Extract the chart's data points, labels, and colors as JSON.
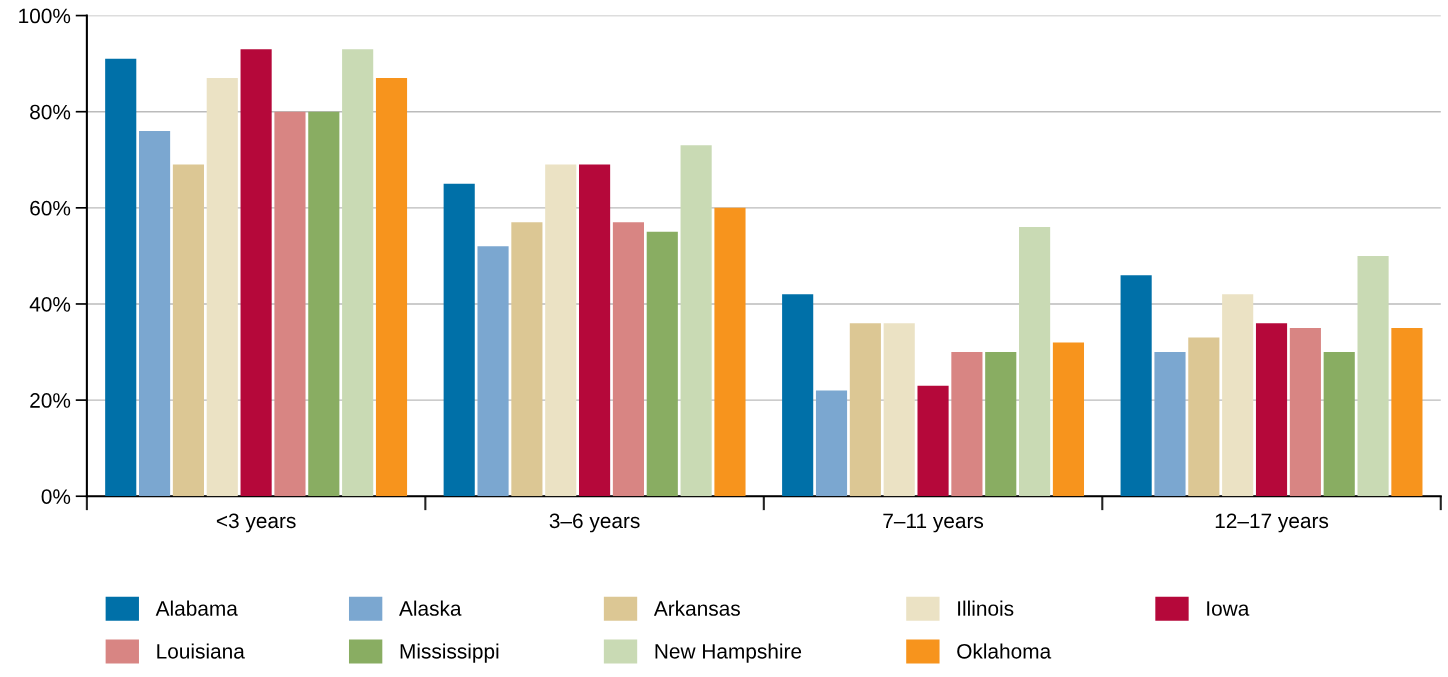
{
  "chart_data": {
    "type": "bar",
    "categories": [
      "<3 years",
      "3–6 years",
      "7–11 years",
      "12–17 years"
    ],
    "series": [
      {
        "name": "Alabama",
        "color": "#0070a8",
        "values": [
          91,
          65,
          42,
          46
        ]
      },
      {
        "name": "Alaska",
        "color": "#7ba7d0",
        "values": [
          76,
          52,
          22,
          30
        ]
      },
      {
        "name": "Arkansas",
        "color": "#dcc794",
        "values": [
          69,
          57,
          36,
          33
        ]
      },
      {
        "name": "Illinois",
        "color": "#ebe2c4",
        "values": [
          87,
          69,
          36,
          42
        ]
      },
      {
        "name": "Iowa",
        "color": "#b5083a",
        "values": [
          93,
          69,
          23,
          36
        ]
      },
      {
        "name": "Louisiana",
        "color": "#d88583",
        "values": [
          80,
          57,
          30,
          35
        ]
      },
      {
        "name": "Mississippi",
        "color": "#89ad62",
        "values": [
          80,
          55,
          30,
          30
        ]
      },
      {
        "name": "New Hampshire",
        "color": "#c9dab4",
        "values": [
          93,
          73,
          56,
          50
        ]
      },
      {
        "name": "Oklahoma",
        "color": "#f7941d",
        "values": [
          87,
          60,
          32,
          35
        ]
      }
    ],
    "ylim": [
      0,
      100
    ],
    "yticks": [
      {
        "value": 0,
        "label": "0%"
      },
      {
        "value": 20,
        "label": "20%"
      },
      {
        "value": 40,
        "label": "40%"
      },
      {
        "value": 60,
        "label": "60%"
      },
      {
        "value": 80,
        "label": "80%"
      },
      {
        "value": 100,
        "label": "100%"
      }
    ],
    "grid": "y",
    "legend": "bottom"
  }
}
